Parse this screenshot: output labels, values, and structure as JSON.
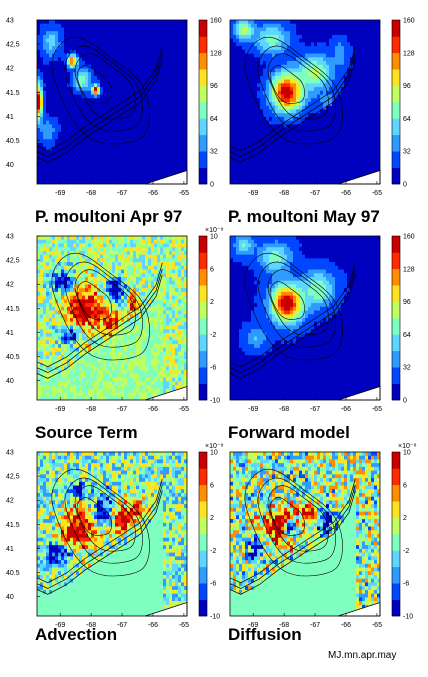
{
  "figure_label": "MJ.mn.apr.may",
  "colormap": [
    "#0000bf",
    "#0047ff",
    "#2f9bff",
    "#5fd6ff",
    "#7fffbf",
    "#bfff5f",
    "#ffe31f",
    "#ff8d00",
    "#ff2a00",
    "#c80000"
  ],
  "land_color": "#ffffff",
  "contour_color": "#000000",
  "chart_data": [
    {
      "type": "heatmap",
      "title": "P. moultoni  Apr 97",
      "xticks": [
        "-69",
        "-68",
        "-67",
        "-66",
        "-65"
      ],
      "yticks": [
        "43",
        "42.5",
        "42",
        "41.5",
        "41",
        "40.5",
        "40"
      ],
      "xlim": [
        -69.75,
        -64.9
      ],
      "ylim": [
        39.6,
        43.0
      ],
      "colorbar": {
        "ticks": [
          "160",
          "128",
          "96",
          "64",
          "32",
          "0"
        ],
        "range": [
          0,
          160
        ],
        "exponent": ""
      },
      "background": 0.06,
      "blobs": [
        {
          "lon": -68.3,
          "lat": 41.75,
          "sx": 0.25,
          "sy": 0.22,
          "v": 0.5
        },
        {
          "lon": -67.85,
          "lat": 41.55,
          "sx": 0.12,
          "sy": 0.1,
          "v": 0.95
        },
        {
          "lon": -68.6,
          "lat": 42.15,
          "sx": 0.15,
          "sy": 0.12,
          "v": 0.85
        },
        {
          "lon": -69.7,
          "lat": 41.3,
          "sx": 0.12,
          "sy": 0.35,
          "v": 1.0
        },
        {
          "lon": -69.3,
          "lat": 42.55,
          "sx": 0.3,
          "sy": 0.3,
          "v": 0.35
        },
        {
          "lon": -69.4,
          "lat": 40.7,
          "sx": 0.25,
          "sy": 0.25,
          "v": 0.3
        }
      ],
      "speckle": 0.04
    },
    {
      "type": "heatmap",
      "title": "P. moultoni  May 97",
      "xticks": [
        "-69",
        "-68",
        "-67",
        "-66",
        "-65"
      ],
      "yticks": [],
      "xlim": [
        -69.75,
        -64.9
      ],
      "ylim": [
        39.6,
        43.0
      ],
      "colorbar": {
        "ticks": [
          "160",
          "128",
          "96",
          "64",
          "32",
          "0"
        ],
        "range": [
          0,
          160
        ],
        "exponent": ""
      },
      "background": 0.06,
      "blobs": [
        {
          "lon": -67.9,
          "lat": 41.5,
          "sx": 0.5,
          "sy": 0.38,
          "v": 1.0
        },
        {
          "lon": -67.0,
          "lat": 41.9,
          "sx": 0.55,
          "sy": 0.35,
          "v": 0.55
        },
        {
          "lon": -68.4,
          "lat": 42.6,
          "sx": 0.55,
          "sy": 0.3,
          "v": 0.45
        },
        {
          "lon": -69.3,
          "lat": 42.8,
          "sx": 0.3,
          "sy": 0.2,
          "v": 0.55
        },
        {
          "lon": -66.2,
          "lat": 42.3,
          "sx": 0.3,
          "sy": 0.3,
          "v": 0.25
        },
        {
          "lon": -66.6,
          "lat": 41.3,
          "sx": 0.4,
          "sy": 0.3,
          "v": 0.22
        }
      ],
      "speckle": 0.03
    },
    {
      "type": "heatmap",
      "title": "Source Term",
      "xticks": [
        "-69",
        "-68",
        "-67",
        "-66",
        "-65"
      ],
      "yticks": [
        "43",
        "42.5",
        "42",
        "41.5",
        "41",
        "40.5",
        "40"
      ],
      "xlim": [
        -69.75,
        -64.9
      ],
      "ylim": [
        39.6,
        43.0
      ],
      "colorbar": {
        "ticks": [
          "10",
          "6",
          "2",
          "-2",
          "-6",
          "-10"
        ],
        "range": [
          -10,
          10
        ],
        "exponent": "×10⁻⁸"
      },
      "background": 0.5,
      "blobs": [
        {
          "lon": -68.2,
          "lat": 41.5,
          "sx": 0.6,
          "sy": 0.45,
          "v": 1.0
        },
        {
          "lon": -67.2,
          "lat": 41.9,
          "sx": 0.3,
          "sy": 0.25,
          "v": 0.0
        },
        {
          "lon": -68.9,
          "lat": 42.05,
          "sx": 0.35,
          "sy": 0.2,
          "v": 0.0
        },
        {
          "lon": -68.7,
          "lat": 40.95,
          "sx": 0.35,
          "sy": 0.2,
          "v": 0.1
        },
        {
          "lon": -67.3,
          "lat": 41.2,
          "sx": 0.25,
          "sy": 0.2,
          "v": 0.95
        },
        {
          "lon": -66.6,
          "lat": 41.6,
          "sx": 0.2,
          "sy": 0.2,
          "v": 0.9
        }
      ],
      "speckle": 0.4
    },
    {
      "type": "heatmap",
      "title": "Forward model",
      "xticks": [
        "-69",
        "-68",
        "-67",
        "-66",
        "-65"
      ],
      "yticks": [],
      "xlim": [
        -69.75,
        -64.9
      ],
      "ylim": [
        39.6,
        43.0
      ],
      "colorbar": {
        "ticks": [
          "160",
          "128",
          "96",
          "64",
          "32",
          "0"
        ],
        "range": [
          0,
          160
        ],
        "exponent": ""
      },
      "background": 0.08,
      "blobs": [
        {
          "lon": -67.9,
          "lat": 41.6,
          "sx": 0.5,
          "sy": 0.38,
          "v": 1.0
        },
        {
          "lon": -66.9,
          "lat": 41.9,
          "sx": 0.5,
          "sy": 0.35,
          "v": 0.5
        },
        {
          "lon": -68.3,
          "lat": 42.55,
          "sx": 0.5,
          "sy": 0.3,
          "v": 0.45
        },
        {
          "lon": -69.3,
          "lat": 42.8,
          "sx": 0.3,
          "sy": 0.2,
          "v": 0.4
        },
        {
          "lon": -68.9,
          "lat": 40.9,
          "sx": 0.35,
          "sy": 0.25,
          "v": 0.3
        }
      ],
      "speckle": 0.02
    },
    {
      "type": "heatmap",
      "title": "Advection",
      "xticks": [
        "-69",
        "-68",
        "-67",
        "-66",
        "-65"
      ],
      "yticks": [
        "43",
        "42.5",
        "42",
        "41.5",
        "41",
        "40.5",
        "40"
      ],
      "xlim": [
        -69.75,
        -64.9
      ],
      "ylim": [
        39.6,
        43.0
      ],
      "colorbar": {
        "ticks": [
          "10",
          "6",
          "2",
          "-2",
          "-6",
          "-10"
        ],
        "range": [
          -10,
          10
        ],
        "exponent": "×10⁻⁸"
      },
      "background": 0.45,
      "blobs": [
        {
          "lon": -68.4,
          "lat": 41.4,
          "sx": 0.55,
          "sy": 0.4,
          "v": 1.0
        },
        {
          "lon": -67.6,
          "lat": 41.75,
          "sx": 0.3,
          "sy": 0.25,
          "v": 0.0
        },
        {
          "lon": -67.0,
          "lat": 41.6,
          "sx": 0.3,
          "sy": 0.25,
          "v": 1.0
        },
        {
          "lon": -69.1,
          "lat": 40.9,
          "sx": 0.35,
          "sy": 0.2,
          "v": 0.0
        },
        {
          "lon": -68.4,
          "lat": 42.2,
          "sx": 0.35,
          "sy": 0.12,
          "v": 0.05
        },
        {
          "lon": -66.5,
          "lat": 41.8,
          "sx": 0.25,
          "sy": 0.2,
          "v": 0.95
        }
      ],
      "speckle": 0.5
    },
    {
      "type": "heatmap",
      "title": "Diffusion",
      "xticks": [
        "-69",
        "-68",
        "-67",
        "-66",
        "-65"
      ],
      "yticks": [],
      "xlim": [
        -69.75,
        -64.9
      ],
      "ylim": [
        39.6,
        43.0
      ],
      "colorbar": {
        "ticks": [
          "10",
          "6",
          "2",
          "-2",
          "-6",
          "-10"
        ],
        "range": [
          -10,
          10
        ],
        "exponent": "×10⁻⁸"
      },
      "background": 0.48,
      "blobs": [
        {
          "lon": -68.2,
          "lat": 41.45,
          "sx": 0.5,
          "sy": 0.35,
          "v": 0.98
        },
        {
          "lon": -67.8,
          "lat": 41.4,
          "sx": 0.18,
          "sy": 0.15,
          "v": 0.0
        },
        {
          "lon": -67.2,
          "lat": 41.75,
          "sx": 0.3,
          "sy": 0.2,
          "v": 1.0
        },
        {
          "lon": -68.9,
          "lat": 41.0,
          "sx": 0.25,
          "sy": 0.2,
          "v": 0.05
        },
        {
          "lon": -66.7,
          "lat": 41.6,
          "sx": 0.3,
          "sy": 0.25,
          "v": 0.1
        }
      ],
      "speckle": 0.6
    }
  ]
}
